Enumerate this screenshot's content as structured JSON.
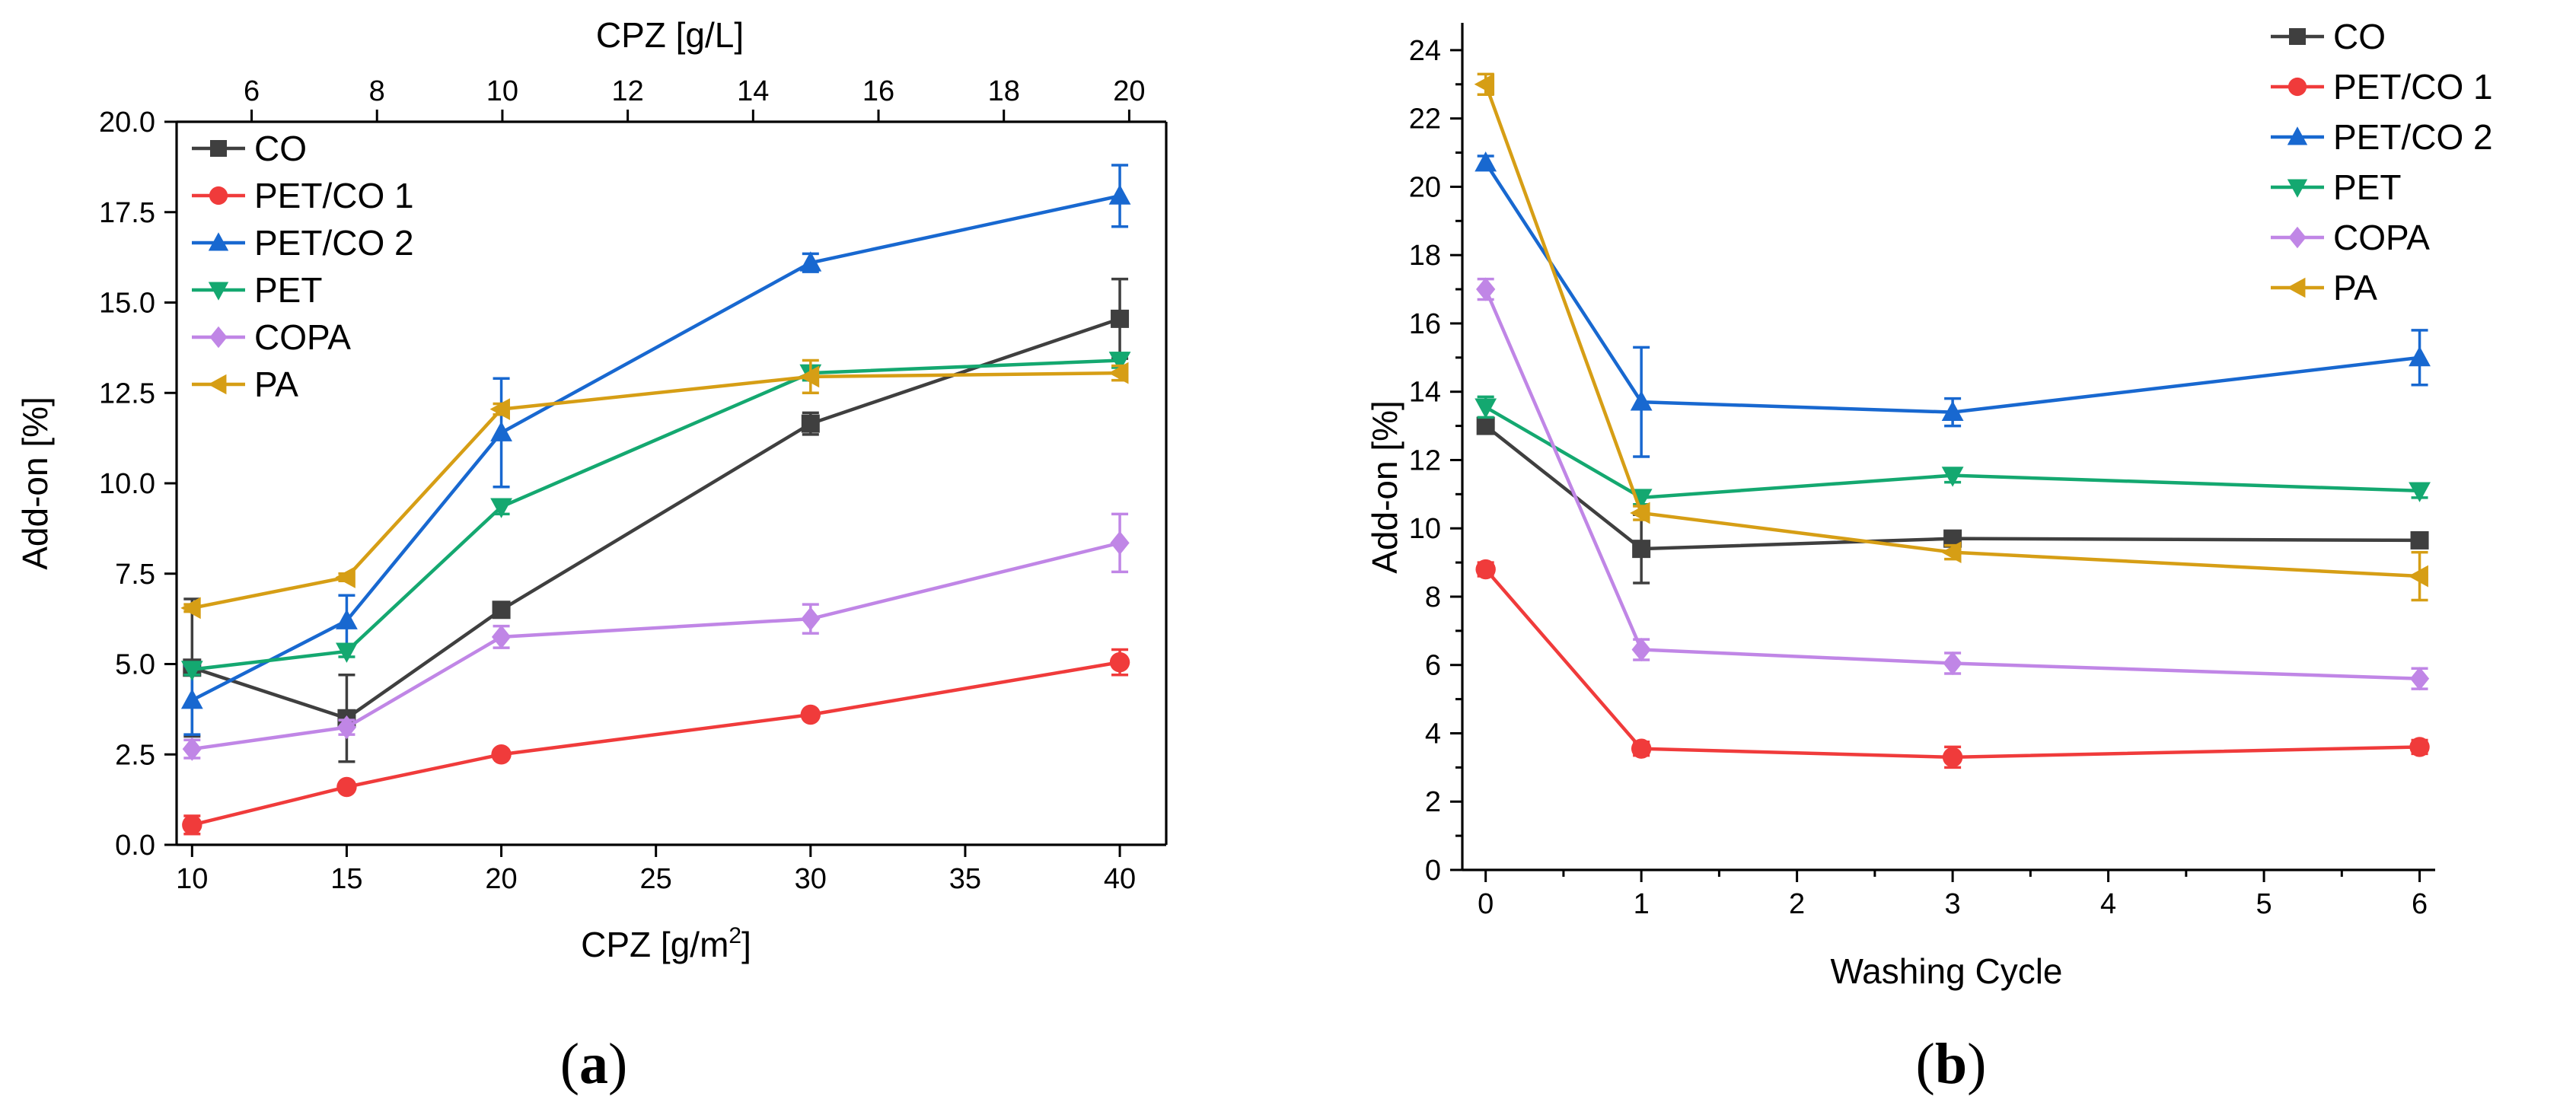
{
  "colors": {
    "CO": "#3f3f3f",
    "PET/CO 1": "#f03b3b",
    "PET/CO 2": "#1868d0",
    "PET": "#14a870",
    "COPA": "#c086e6",
    "PA": "#d69e15"
  },
  "chart_data": [
    {
      "type": "line",
      "panel": "a",
      "xlabel_main": "CPZ [g/m",
      "xlabel_sup": "2",
      "xlabel_end": "]",
      "ylabel": "Add-on [%]",
      "top_axis_label": "CPZ [g/L]",
      "xlim": [
        9.5,
        41.5
      ],
      "ylim": [
        0,
        20
      ],
      "xticks": [
        10,
        15,
        20,
        25,
        30,
        35,
        40
      ],
      "xtick_labels": [
        "10",
        "15",
        "20",
        "25",
        "30",
        "35",
        "40"
      ],
      "yticks": [
        0,
        2.5,
        5,
        7.5,
        10,
        12.5,
        15,
        17.5,
        20
      ],
      "ytick_labels": [
        "0.0",
        "2.5",
        "5.0",
        "7.5",
        "10.0",
        "12.5",
        "15.0",
        "17.5",
        "20.0"
      ],
      "top_ticks": [
        6,
        8,
        10,
        12,
        14,
        16,
        18,
        20
      ],
      "top_tick_labels": [
        "6",
        "8",
        "10",
        "12",
        "14",
        "16",
        "18",
        "20"
      ],
      "top_axis_map": {
        "bottom_a": 10,
        "top_a": 5.05,
        "bottom_b": 40,
        "top_b": 19.85
      },
      "legend_position": "top-left",
      "series": [
        {
          "name": "CO",
          "marker": "square",
          "x": [
            10,
            15,
            20,
            30,
            40
          ],
          "y": [
            4.9,
            3.5,
            6.5,
            11.65,
            14.55
          ],
          "err": [
            1.9,
            1.2,
            0.15,
            0.3,
            1.1
          ]
        },
        {
          "name": "PET/CO 1",
          "marker": "circle",
          "x": [
            10,
            15,
            20,
            30,
            40
          ],
          "y": [
            0.55,
            1.6,
            2.5,
            3.6,
            5.05
          ],
          "err": [
            0.25,
            0.1,
            0.1,
            0.1,
            0.35
          ]
        },
        {
          "name": "PET/CO 2",
          "marker": "triangle-up",
          "x": [
            10,
            15,
            20,
            30,
            40
          ],
          "y": [
            4.0,
            6.2,
            11.4,
            16.1,
            17.95
          ],
          "err": [
            0.95,
            0.7,
            1.5,
            0.25,
            0.85
          ]
        },
        {
          "name": "PET",
          "marker": "triangle-down",
          "x": [
            10,
            15,
            20,
            30,
            40
          ],
          "y": [
            4.85,
            5.35,
            9.35,
            13.05,
            13.4
          ],
          "err": [
            0.15,
            0.15,
            0.2,
            0.2,
            0.2
          ]
        },
        {
          "name": "COPA",
          "marker": "diamond",
          "x": [
            10,
            15,
            20,
            30,
            40
          ],
          "y": [
            2.65,
            3.25,
            5.75,
            6.25,
            8.35
          ],
          "err": [
            0.25,
            0.2,
            0.3,
            0.4,
            0.8
          ]
        },
        {
          "name": "PA",
          "marker": "triangle-left",
          "x": [
            10,
            15,
            20,
            30,
            40
          ],
          "y": [
            6.55,
            7.4,
            12.05,
            12.95,
            13.05
          ],
          "err": [
            0.1,
            0.1,
            0.15,
            0.45,
            0.2
          ]
        }
      ]
    },
    {
      "type": "line",
      "panel": "b",
      "xlabel": "Washing Cycle",
      "ylabel": "Add-on [%]",
      "xlim": [
        -0.15,
        6.1
      ],
      "ylim": [
        0,
        24.8
      ],
      "xticks": [
        0,
        1,
        2,
        3,
        4,
        5,
        6
      ],
      "xtick_labels": [
        "0",
        "1",
        "2",
        "3",
        "4",
        "5",
        "6"
      ],
      "yticks": [
        0,
        2,
        4,
        6,
        8,
        10,
        12,
        14,
        16,
        18,
        20,
        22,
        24
      ],
      "ytick_labels": [
        "0",
        "2",
        "4",
        "6",
        "8",
        "10",
        "12",
        "14",
        "16",
        "18",
        "20",
        "22",
        "24"
      ],
      "legend_position": "top-right",
      "series": [
        {
          "name": "CO",
          "marker": "square",
          "x": [
            0,
            1,
            3,
            6
          ],
          "y": [
            13.0,
            9.4,
            9.7,
            9.65
          ],
          "err": [
            0.2,
            1.0,
            0.2,
            0.2
          ]
        },
        {
          "name": "PET/CO 1",
          "marker": "circle",
          "x": [
            0,
            1,
            3,
            6
          ],
          "y": [
            8.8,
            3.55,
            3.3,
            3.6
          ],
          "err": [
            0.2,
            0.2,
            0.3,
            0.2
          ]
        },
        {
          "name": "PET/CO 2",
          "marker": "triangle-up",
          "x": [
            0,
            1,
            3,
            6
          ],
          "y": [
            20.7,
            13.7,
            13.4,
            15.0
          ],
          "err": [
            0.2,
            1.6,
            0.4,
            0.8
          ]
        },
        {
          "name": "PET",
          "marker": "triangle-down",
          "x": [
            0,
            1,
            3,
            6
          ],
          "y": [
            13.55,
            10.9,
            11.55,
            11.1
          ],
          "err": [
            0.3,
            0.2,
            0.2,
            0.2
          ]
        },
        {
          "name": "COPA",
          "marker": "diamond",
          "x": [
            0,
            1,
            3,
            6
          ],
          "y": [
            17.0,
            6.45,
            6.05,
            5.6
          ],
          "err": [
            0.3,
            0.3,
            0.3,
            0.3
          ]
        },
        {
          "name": "PA",
          "marker": "triangle-left",
          "x": [
            0,
            1,
            3,
            6
          ],
          "y": [
            23.0,
            10.45,
            9.3,
            8.6
          ],
          "err": [
            0.3,
            0.2,
            0.2,
            0.7
          ]
        }
      ]
    }
  ],
  "panel_labels": [
    {
      "open": "(",
      "letter": "a",
      "close": ")"
    },
    {
      "open": "(",
      "letter": "b",
      "close": ")"
    }
  ]
}
